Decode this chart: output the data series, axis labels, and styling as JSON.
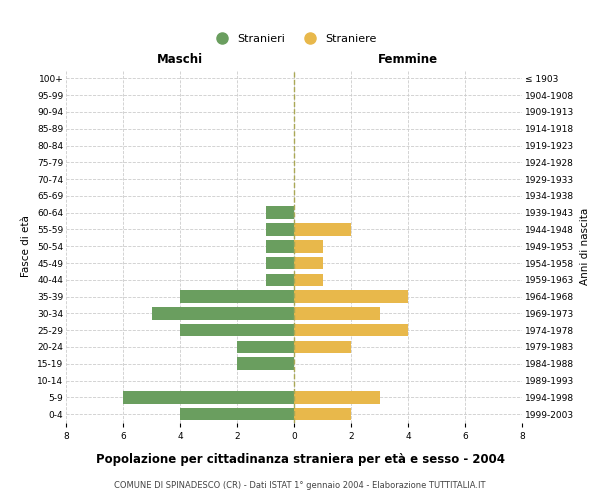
{
  "age_groups": [
    "0-4",
    "5-9",
    "10-14",
    "15-19",
    "20-24",
    "25-29",
    "30-34",
    "35-39",
    "40-44",
    "45-49",
    "50-54",
    "55-59",
    "60-64",
    "65-69",
    "70-74",
    "75-79",
    "80-84",
    "85-89",
    "90-94",
    "95-99",
    "100+"
  ],
  "birth_years": [
    "1999-2003",
    "1994-1998",
    "1989-1993",
    "1984-1988",
    "1979-1983",
    "1974-1978",
    "1969-1973",
    "1964-1968",
    "1959-1963",
    "1954-1958",
    "1949-1953",
    "1944-1948",
    "1939-1943",
    "1934-1938",
    "1929-1933",
    "1924-1928",
    "1919-1923",
    "1914-1918",
    "1909-1913",
    "1904-1908",
    "≤ 1903"
  ],
  "maschi": [
    4,
    6,
    0,
    2,
    2,
    4,
    5,
    4,
    1,
    1,
    1,
    1,
    1,
    0,
    0,
    0,
    0,
    0,
    0,
    0,
    0
  ],
  "femmine": [
    2,
    3,
    0,
    0,
    2,
    4,
    3,
    4,
    1,
    1,
    1,
    2,
    0,
    0,
    0,
    0,
    0,
    0,
    0,
    0,
    0
  ],
  "maschi_color": "#6a9e5f",
  "femmine_color": "#e8b84b",
  "grid_color": "#cccccc",
  "center_line_color": "#aaa855",
  "xlim": 8,
  "title": "Popolazione per cittadinanza straniera per età e sesso - 2004",
  "subtitle": "COMUNE DI SPINADESCO (CR) - Dati ISTAT 1° gennaio 2004 - Elaborazione TUTTITALIA.IT",
  "xlabel_left": "Maschi",
  "xlabel_right": "Femmine",
  "ylabel_left": "Fasce di età",
  "ylabel_right": "Anni di nascita",
  "legend_stranieri": "Stranieri",
  "legend_straniere": "Straniere",
  "background_color": "#ffffff"
}
